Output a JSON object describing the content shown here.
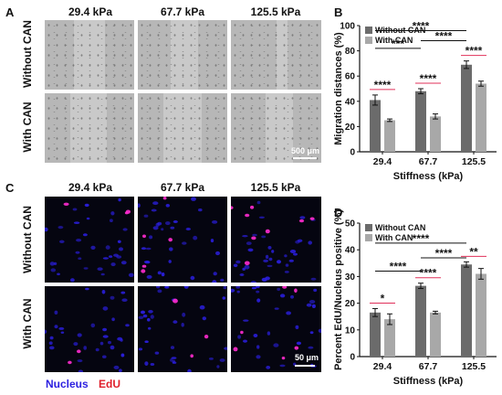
{
  "panels": {
    "A": {
      "label": "A",
      "columns": [
        "29.4 kPa",
        "67.7 kPa",
        "125.5 kPa"
      ],
      "rows": [
        "Without CAN",
        "With CAN"
      ],
      "scale_bar": "500 μm"
    },
    "C": {
      "label": "C",
      "columns": [
        "29.4 kPa",
        "67.7 kPa",
        "125.5 kPa"
      ],
      "rows": [
        "Without CAN",
        "With CAN"
      ],
      "scale_bar": "50 μm",
      "channels": [
        "Nucleus",
        "EdU"
      ],
      "channel_colors": [
        "#2b1fe0",
        "#e01f2b"
      ]
    }
  },
  "chart_data": [
    {
      "panel": "B",
      "type": "bar",
      "xlabel": "Stiffness (kPa)",
      "ylabel": "Migration distances (%)",
      "categories": [
        "29.4",
        "67.7",
        "125.5"
      ],
      "ylim": [
        0,
        100
      ],
      "yticks": [
        "0",
        "20",
        "40",
        "60",
        "80",
        "100"
      ],
      "legend_position": "top-left",
      "series": [
        {
          "name": "Without CAN",
          "color": "#6b6b6b",
          "values": [
            41,
            48,
            69
          ],
          "errors": [
            4,
            2,
            3
          ]
        },
        {
          "name": "With CAN",
          "color": "#a8a8a8",
          "values": [
            25,
            28,
            54
          ],
          "errors": [
            1,
            2,
            2
          ]
        }
      ],
      "significance": [
        {
          "label": "****",
          "type": "pair",
          "category": 0,
          "color": "#e0305a"
        },
        {
          "label": "****",
          "type": "pair",
          "category": 1,
          "color": "#e0305a"
        },
        {
          "label": "****",
          "type": "pair",
          "category": 2,
          "color": "#e0305a"
        },
        {
          "label": "***",
          "type": "bracket",
          "from": 0,
          "to": 1,
          "level": 82,
          "color": "#111"
        },
        {
          "label": "****",
          "type": "bracket",
          "from": 1,
          "to": 2,
          "level": 88,
          "color": "#111"
        },
        {
          "label": "****",
          "type": "bracket",
          "from": 0,
          "to": 2,
          "level": 96,
          "color": "#111"
        }
      ]
    },
    {
      "panel": "D",
      "type": "bar",
      "xlabel": "Stiffness (kPa)",
      "ylabel": "Percent EdU/Nucleus positive (%)",
      "categories": [
        "29.4",
        "67.7",
        "125.5"
      ],
      "ylim": [
        0,
        50
      ],
      "yticks": [
        "0",
        "10",
        "20",
        "30",
        "40",
        "50"
      ],
      "legend_position": "top-left",
      "series": [
        {
          "name": "Without CAN",
          "color": "#6b6b6b",
          "values": [
            16.5,
            26.5,
            34.5
          ],
          "errors": [
            1.5,
            1,
            1
          ]
        },
        {
          "name": "With CAN",
          "color": "#a8a8a8",
          "values": [
            14,
            16.5,
            31
          ],
          "errors": [
            2,
            0.5,
            2
          ]
        }
      ],
      "significance": [
        {
          "label": "*",
          "type": "pair",
          "category": 0,
          "color": "#e0305a"
        },
        {
          "label": "****",
          "type": "pair",
          "category": 1,
          "color": "#e0305a"
        },
        {
          "label": "**",
          "type": "pair",
          "category": 2,
          "color": "#e0305a"
        },
        {
          "label": "****",
          "type": "bracket",
          "from": 0,
          "to": 1,
          "level": 32,
          "color": "#111"
        },
        {
          "label": "****",
          "type": "bracket",
          "from": 1,
          "to": 2,
          "level": 37,
          "color": "#111"
        },
        {
          "label": "****",
          "type": "bracket",
          "from": 0,
          "to": 2,
          "level": 42.5,
          "color": "#111"
        }
      ]
    }
  ]
}
